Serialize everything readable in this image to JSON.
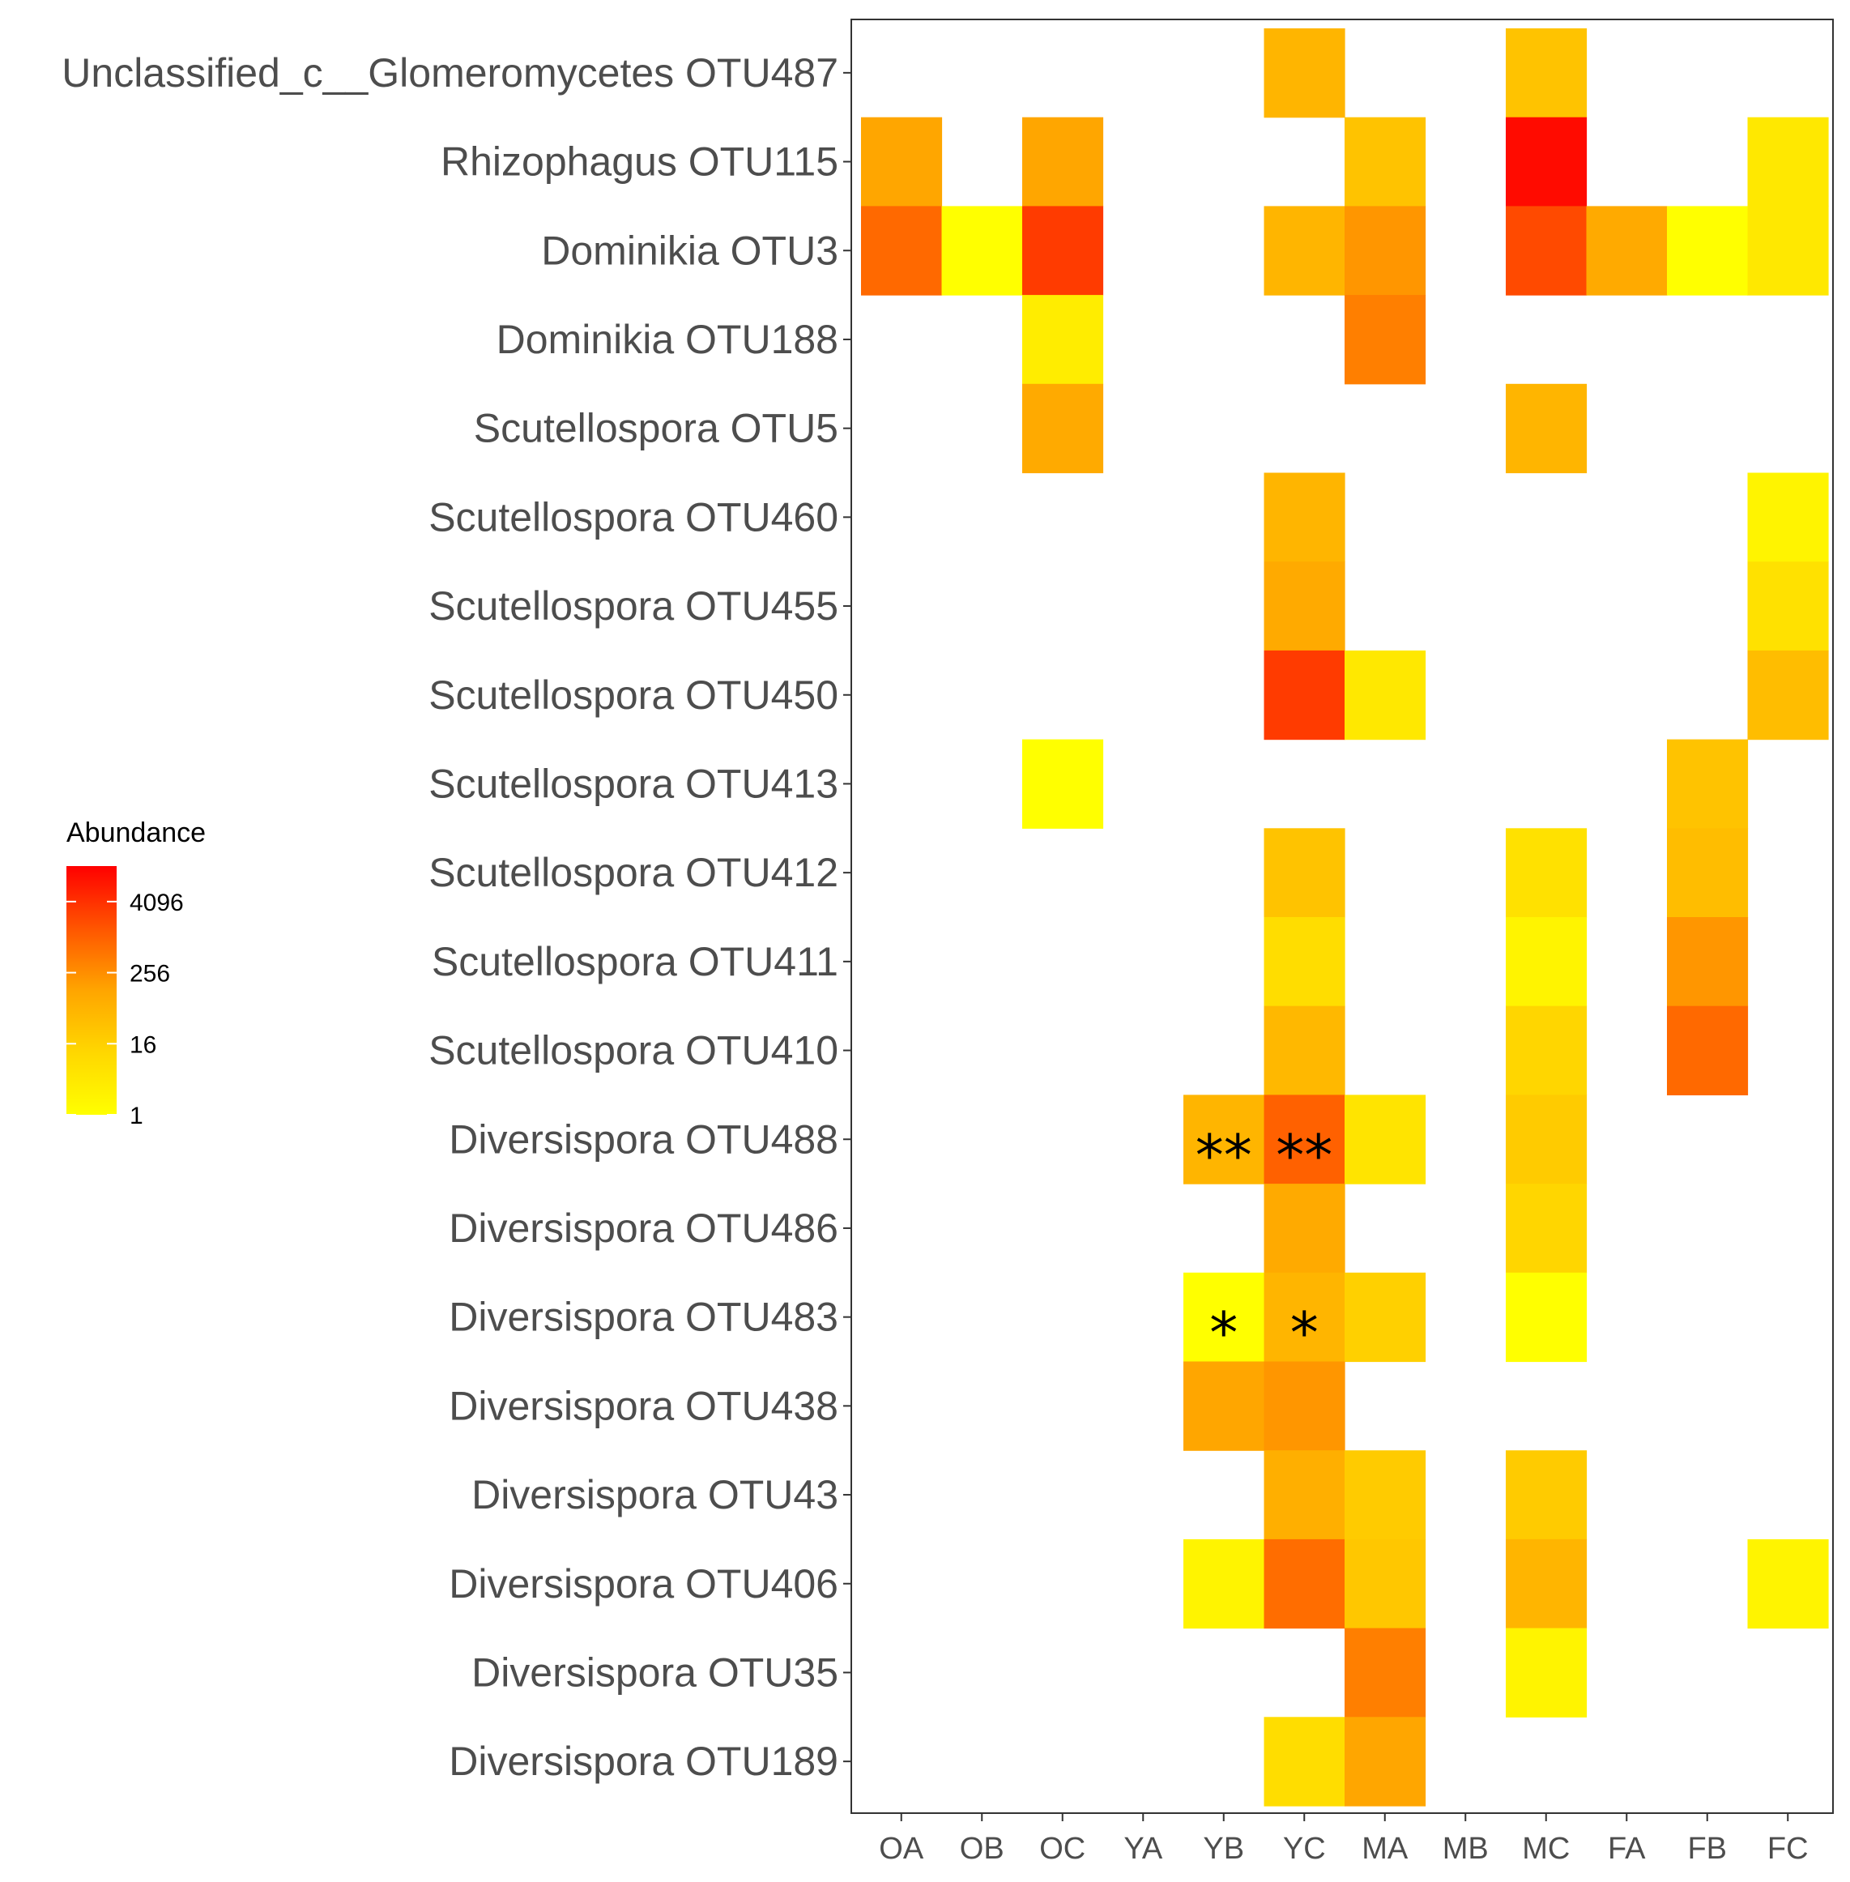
{
  "chart_data": {
    "type": "heatmap",
    "title": "",
    "xlabel": "",
    "ylabel": "",
    "columns": [
      "OA",
      "OB",
      "OC",
      "YA",
      "YB",
      "YC",
      "MA",
      "MB",
      "MC",
      "FA",
      "FB",
      "FC"
    ],
    "rows": [
      "Unclassified_c__Glomeromycetes OTU487",
      "Rhizophagus OTU115",
      "Dominikia OTU3",
      "Dominikia OTU188",
      "Scutellospora OTU5",
      "Scutellospora OTU460",
      "Scutellospora OTU455",
      "Scutellospora OTU450",
      "Scutellospora OTU413",
      "Scutellospora OTU412",
      "Scutellospora OTU411",
      "Scutellospora OTU410",
      "Diversispora OTU488",
      "Diversispora OTU486",
      "Diversispora OTU483",
      "Diversispora OTU438",
      "Diversispora OTU43",
      "Diversispora OTU406",
      "Diversispora OTU35",
      "Diversispora OTU189"
    ],
    "scale": "log2",
    "values": [
      [
        null,
        null,
        null,
        null,
        null,
        60,
        null,
        null,
        30,
        null,
        null,
        null
      ],
      [
        120,
        null,
        120,
        null,
        null,
        null,
        30,
        null,
        12000,
        null,
        null,
        4
      ],
      [
        800,
        1,
        3000,
        null,
        null,
        60,
        200,
        null,
        2000,
        100,
        1,
        4
      ],
      [
        null,
        null,
        3,
        null,
        null,
        null,
        400,
        null,
        null,
        null,
        null,
        null
      ],
      [
        null,
        null,
        100,
        null,
        null,
        null,
        null,
        null,
        60,
        null,
        null,
        null
      ],
      [
        null,
        null,
        null,
        null,
        null,
        60,
        null,
        null,
        null,
        null,
        null,
        2
      ],
      [
        null,
        null,
        null,
        null,
        null,
        100,
        null,
        null,
        null,
        null,
        null,
        6
      ],
      [
        null,
        null,
        null,
        null,
        null,
        3000,
        4,
        null,
        null,
        null,
        null,
        40
      ],
      [
        null,
        null,
        1,
        null,
        null,
        null,
        null,
        null,
        null,
        null,
        30,
        null
      ],
      [
        null,
        null,
        null,
        null,
        null,
        30,
        null,
        null,
        6,
        null,
        40,
        null
      ],
      [
        null,
        null,
        null,
        null,
        null,
        8,
        null,
        null,
        2,
        null,
        200,
        null
      ],
      [
        null,
        null,
        null,
        null,
        null,
        50,
        null,
        null,
        12,
        null,
        800,
        null
      ],
      [
        null,
        null,
        null,
        null,
        60,
        1000,
        5,
        null,
        20,
        null,
        null,
        null
      ],
      [
        null,
        null,
        null,
        null,
        null,
        100,
        null,
        null,
        12,
        null,
        null,
        null
      ],
      [
        null,
        null,
        null,
        null,
        1,
        60,
        16,
        null,
        1,
        null,
        null,
        null
      ],
      [
        null,
        null,
        null,
        null,
        120,
        200,
        null,
        null,
        null,
        null,
        null,
        null
      ],
      [
        null,
        null,
        null,
        null,
        null,
        80,
        20,
        null,
        20,
        null,
        null,
        null
      ],
      [
        null,
        null,
        null,
        null,
        2,
        700,
        25,
        null,
        60,
        null,
        null,
        2
      ],
      [
        null,
        null,
        null,
        null,
        null,
        null,
        400,
        null,
        2,
        null,
        null,
        null
      ],
      [
        null,
        null,
        null,
        null,
        null,
        8,
        120,
        null,
        null,
        null,
        null,
        null
      ]
    ],
    "annotations": [
      {
        "row": "Diversispora OTU488",
        "column": "YB",
        "text": "**"
      },
      {
        "row": "Diversispora OTU488",
        "column": "YC",
        "text": "**"
      },
      {
        "row": "Diversispora OTU483",
        "column": "YB",
        "text": "*"
      },
      {
        "row": "Diversispora OTU483",
        "column": "YC",
        "text": "*"
      }
    ],
    "legend": {
      "title": "Abundance",
      "position": "left",
      "ticks": [
        1,
        16,
        256,
        4096
      ],
      "tick_labels": [
        "1",
        "16",
        "256",
        "4096"
      ],
      "range": [
        1,
        16384
      ],
      "colors": [
        "#ffff00",
        "#ffd700",
        "#ffa500",
        "#ff5500",
        "#ff0000"
      ]
    }
  }
}
